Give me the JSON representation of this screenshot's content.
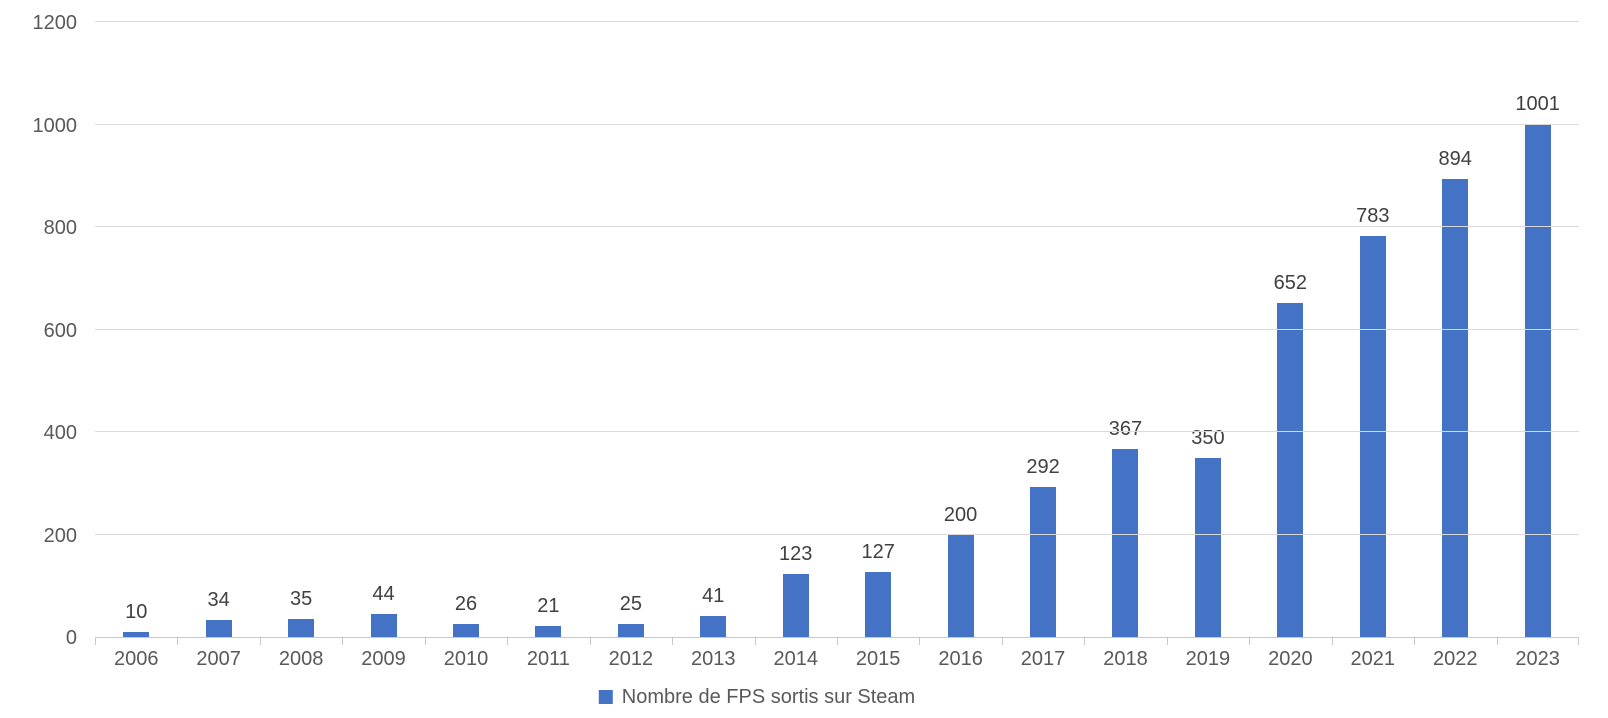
{
  "chart_data": {
    "type": "bar",
    "title": "",
    "categories": [
      "2006",
      "2007",
      "2008",
      "2009",
      "2010",
      "2011",
      "2012",
      "2013",
      "2014",
      "2015",
      "2016",
      "2017",
      "2018",
      "2019",
      "2020",
      "2021",
      "2022",
      "2023"
    ],
    "values": [
      10,
      34,
      35,
      44,
      26,
      21,
      25,
      41,
      123,
      127,
      200,
      292,
      367,
      350,
      652,
      783,
      894,
      1001
    ],
    "series_name": "Nombre de FPS sortis sur Steam",
    "xlabel": "",
    "ylabel": "",
    "ylim": [
      0,
      1200
    ],
    "y_ticks": [
      0,
      200,
      400,
      600,
      800,
      1000,
      1200
    ],
    "grid": true,
    "data_labels": true,
    "legend_position": "bottom-center",
    "colors": {
      "bar": "#4472C4",
      "grid": "#D9D9D9",
      "axis": "#C8C8C8",
      "tick_label": "#595959",
      "data_label": "#404040"
    }
  }
}
